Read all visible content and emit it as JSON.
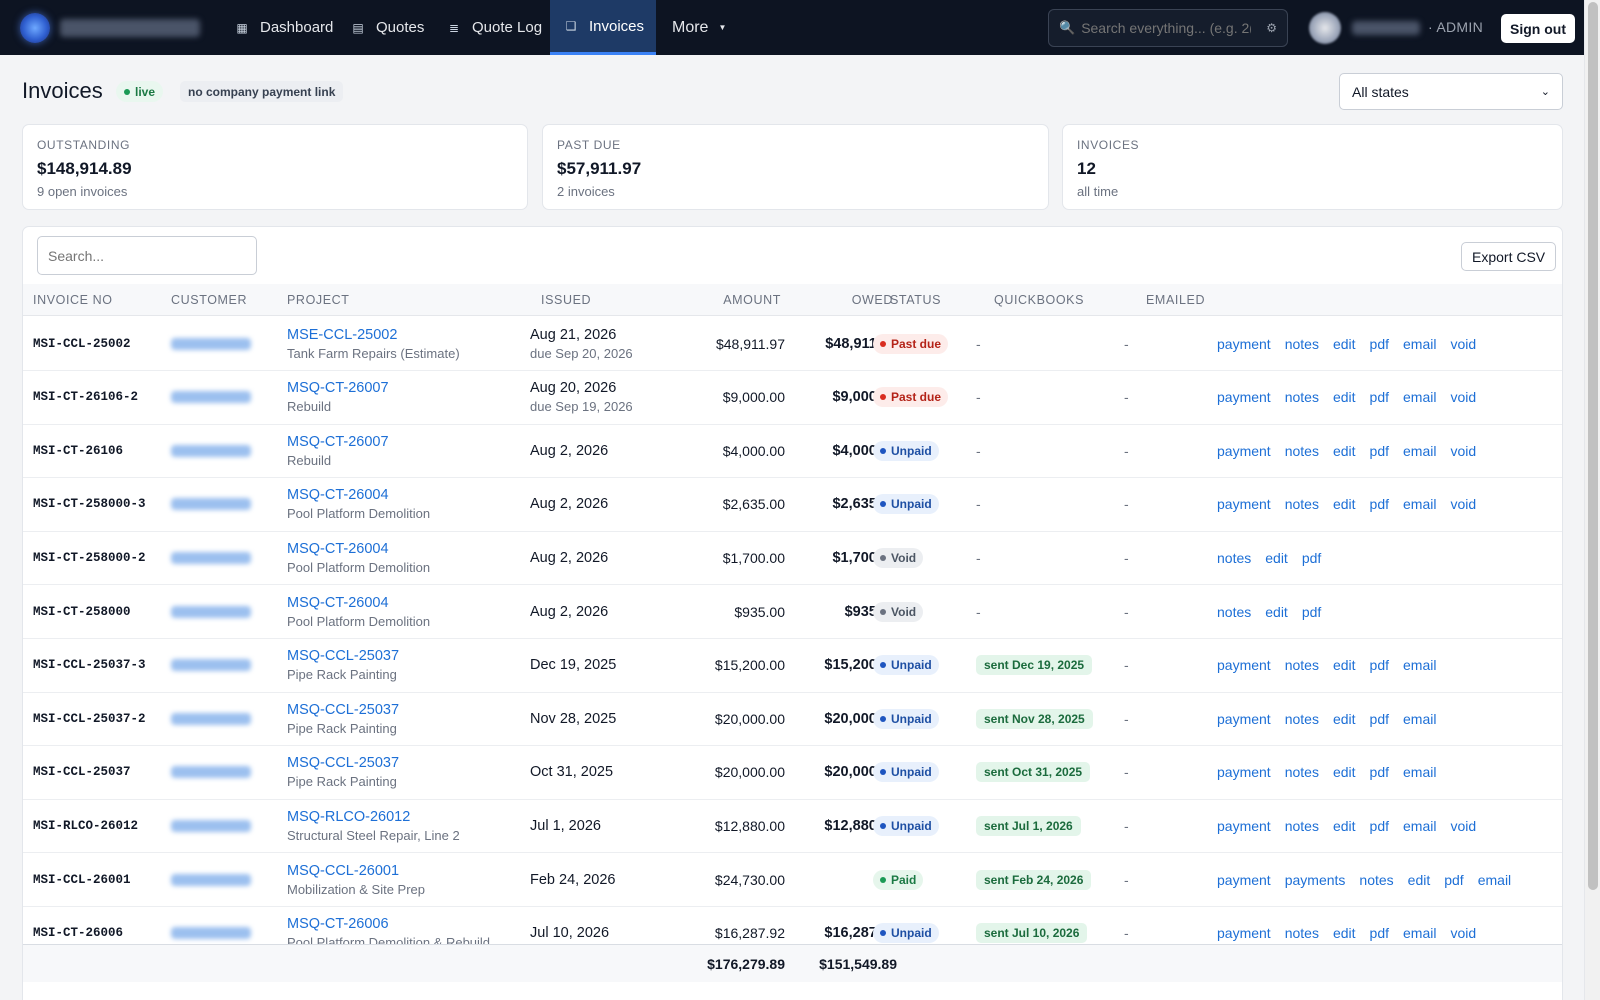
{
  "nav": {
    "items": [
      {
        "label": "Dashboard",
        "icon": "▦"
      },
      {
        "label": "Quotes",
        "icon": "▤"
      },
      {
        "label": "Quote Log",
        "icon": "≣"
      },
      {
        "label": "Invoices",
        "icon": "❑"
      }
    ],
    "more_label": "More",
    "search_placeholder": "Search everything... (e.g. 2(",
    "role": "· ADMIN",
    "sign_out": "Sign out"
  },
  "header": {
    "title": "Invoices",
    "live_badge": "live",
    "payment_link_badge": "no company payment link",
    "state_filter": "All states"
  },
  "stats": [
    {
      "label": "OUTSTANDING",
      "value": "$148,914.89",
      "sub": "9 open invoices"
    },
    {
      "label": "PAST DUE",
      "value": "$57,911.97",
      "sub": "2 invoices"
    },
    {
      "label": "INVOICES",
      "value": "12",
      "sub": "all time"
    }
  ],
  "table": {
    "search_placeholder": "Search...",
    "export_label": "Export CSV",
    "columns": {
      "invoice_no": "INVOICE NO",
      "customer": "CUSTOMER",
      "project": "PROJECT",
      "issued": "ISSUED",
      "amount": "AMOUNT",
      "owed": "OWED",
      "status": "STATUS",
      "quickbooks": "QUICKBOOKS",
      "emailed": "EMAILED"
    },
    "rows": [
      {
        "invoice_no": "MSI-CCL-25002",
        "project": "MSE-CCL-25002",
        "project_desc": "Tank Farm Repairs (Estimate)",
        "issued": "Aug 21, 2026",
        "due": "due Sep 20, 2026",
        "amount": "$48,911.97",
        "owed": "$48,911.97",
        "status": "Past due",
        "status_kind": "past",
        "quickbooks": "-",
        "qb_sent": false,
        "emailed": "-",
        "actions": [
          "payment",
          "notes",
          "edit",
          "pdf",
          "email",
          "void"
        ]
      },
      {
        "invoice_no": "MSI-CT-26106-2",
        "project": "MSQ-CT-26007",
        "project_desc": "Rebuild",
        "issued": "Aug 20, 2026",
        "due": "due Sep 19, 2026",
        "amount": "$9,000.00",
        "owed": "$9,000.00",
        "status": "Past due",
        "status_kind": "past",
        "quickbooks": "-",
        "qb_sent": false,
        "emailed": "-",
        "actions": [
          "payment",
          "notes",
          "edit",
          "pdf",
          "email",
          "void"
        ]
      },
      {
        "invoice_no": "MSI-CT-26106",
        "project": "MSQ-CT-26007",
        "project_desc": "Rebuild",
        "issued": "Aug 2, 2026",
        "due": "",
        "amount": "$4,000.00",
        "owed": "$4,000.00",
        "status": "Unpaid",
        "status_kind": "unpaid",
        "quickbooks": "-",
        "qb_sent": false,
        "emailed": "-",
        "actions": [
          "payment",
          "notes",
          "edit",
          "pdf",
          "email",
          "void"
        ]
      },
      {
        "invoice_no": "MSI-CT-258000-3",
        "project": "MSQ-CT-26004",
        "project_desc": "Pool Platform Demolition",
        "issued": "Aug 2, 2026",
        "due": "",
        "amount": "$2,635.00",
        "owed": "$2,635.00",
        "status": "Unpaid",
        "status_kind": "unpaid",
        "quickbooks": "-",
        "qb_sent": false,
        "emailed": "-",
        "actions": [
          "payment",
          "notes",
          "edit",
          "pdf",
          "email",
          "void"
        ]
      },
      {
        "invoice_no": "MSI-CT-258000-2",
        "project": "MSQ-CT-26004",
        "project_desc": "Pool Platform Demolition",
        "issued": "Aug 2, 2026",
        "due": "",
        "amount": "$1,700.00",
        "owed": "$1,700.00",
        "status": "Void",
        "status_kind": "void",
        "quickbooks": "-",
        "qb_sent": false,
        "emailed": "-",
        "actions": [
          "notes",
          "edit",
          "pdf"
        ]
      },
      {
        "invoice_no": "MSI-CT-258000",
        "project": "MSQ-CT-26004",
        "project_desc": "Pool Platform Demolition",
        "issued": "Aug 2, 2026",
        "due": "",
        "amount": "$935.00",
        "owed": "$935.00",
        "status": "Void",
        "status_kind": "void",
        "quickbooks": "-",
        "qb_sent": false,
        "emailed": "-",
        "actions": [
          "notes",
          "edit",
          "pdf"
        ]
      },
      {
        "invoice_no": "MSI-CCL-25037-3",
        "project": "MSQ-CCL-25037",
        "project_desc": "Pipe Rack Painting",
        "issued": "Dec 19, 2025",
        "due": "",
        "amount": "$15,200.00",
        "owed": "$15,200.00",
        "status": "Unpaid",
        "status_kind": "unpaid",
        "quickbooks": "sent Dec 19, 2025",
        "qb_sent": true,
        "emailed": "-",
        "actions": [
          "payment",
          "notes",
          "edit",
          "pdf",
          "email"
        ]
      },
      {
        "invoice_no": "MSI-CCL-25037-2",
        "project": "MSQ-CCL-25037",
        "project_desc": "Pipe Rack Painting",
        "issued": "Nov 28, 2025",
        "due": "",
        "amount": "$20,000.00",
        "owed": "$20,000.00",
        "status": "Unpaid",
        "status_kind": "unpaid",
        "quickbooks": "sent Nov 28, 2025",
        "qb_sent": true,
        "emailed": "-",
        "actions": [
          "payment",
          "notes",
          "edit",
          "pdf",
          "email"
        ]
      },
      {
        "invoice_no": "MSI-CCL-25037",
        "project": "MSQ-CCL-25037",
        "project_desc": "Pipe Rack Painting",
        "issued": "Oct 31, 2025",
        "due": "",
        "amount": "$20,000.00",
        "owed": "$20,000.00",
        "status": "Unpaid",
        "status_kind": "unpaid",
        "quickbooks": "sent Oct 31, 2025",
        "qb_sent": true,
        "emailed": "-",
        "actions": [
          "payment",
          "notes",
          "edit",
          "pdf",
          "email"
        ]
      },
      {
        "invoice_no": "MSI-RLCO-26012",
        "project": "MSQ-RLCO-26012",
        "project_desc": "Structural Steel Repair, Line 2",
        "issued": "Jul 1, 2026",
        "due": "",
        "amount": "$12,880.00",
        "owed": "$12,880.00",
        "status": "Unpaid",
        "status_kind": "unpaid",
        "quickbooks": "sent Jul 1, 2026",
        "qb_sent": true,
        "emailed": "-",
        "actions": [
          "payment",
          "notes",
          "edit",
          "pdf",
          "email",
          "void"
        ]
      },
      {
        "invoice_no": "MSI-CCL-26001",
        "project": "MSQ-CCL-26001",
        "project_desc": "Mobilization & Site Prep",
        "issued": "Feb 24, 2026",
        "due": "",
        "amount": "$24,730.00",
        "owed": "-",
        "status": "Paid",
        "status_kind": "paid",
        "quickbooks": "sent Feb 24, 2026",
        "qb_sent": true,
        "emailed": "-",
        "actions": [
          "payment",
          "payments",
          "notes",
          "edit",
          "pdf",
          "email"
        ]
      },
      {
        "invoice_no": "MSI-CT-26006",
        "project": "MSQ-CT-26006",
        "project_desc": "Pool Platform Demolition & Rebuild",
        "issued": "Jul 10, 2026",
        "due": "",
        "amount": "$16,287.92",
        "owed": "$16,287.92",
        "status": "Unpaid",
        "status_kind": "unpaid",
        "quickbooks": "sent Jul 10, 2026",
        "qb_sent": true,
        "emailed": "-",
        "actions": [
          "payment",
          "notes",
          "edit",
          "pdf",
          "email",
          "void"
        ]
      }
    ],
    "totals": {
      "amount": "$176,279.89",
      "owed": "$151,549.89"
    }
  }
}
